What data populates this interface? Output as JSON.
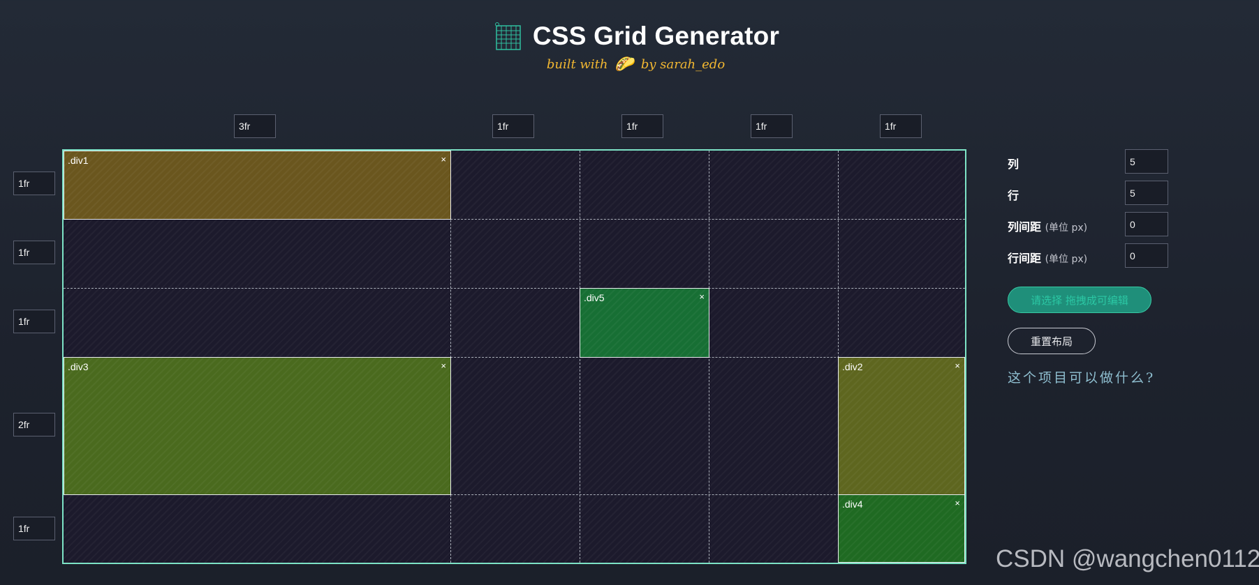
{
  "header": {
    "title": "CSS Grid Generator",
    "subtitle_prefix": "built with",
    "taco": "🌮",
    "subtitle_suffix": "by sarah_edo",
    "logo_icon": "grid-icon"
  },
  "columns": {
    "sizes": [
      "3fr",
      "1fr",
      "1fr",
      "1fr",
      "1fr"
    ]
  },
  "rows": {
    "sizes": [
      "1fr",
      "1fr",
      "1fr",
      "2fr",
      "1fr"
    ]
  },
  "grid_items": [
    {
      "name": ".div1",
      "close": "×",
      "color": "#6a561e"
    },
    {
      "name": ".div5",
      "close": "×",
      "color": "#176f34"
    },
    {
      "name": ".div3",
      "close": "×",
      "color": "#4a6a1e"
    },
    {
      "name": ".div2",
      "close": "×",
      "color": "#5e661f"
    },
    {
      "name": ".div4",
      "close": "×",
      "color": "#1f6a22"
    }
  ],
  "panel": {
    "columns_label": "列",
    "columns_value": "5",
    "rows_label": "行",
    "rows_value": "5",
    "col_gap_label": "列间距",
    "col_gap_unit": "(单位 px)",
    "col_gap_value": "0",
    "row_gap_label": "行间距",
    "row_gap_unit": "(单位 px)",
    "row_gap_value": "0",
    "code_button": "请选择 拖拽成可编辑",
    "reset_button": "重置布局",
    "help_link": "这个项目可以做什么?"
  },
  "watermark": "CSDN @wangchen0112",
  "colors": {
    "accent": "#7de3c6",
    "subtitle": "#f2b731",
    "background": "#1f2430"
  }
}
